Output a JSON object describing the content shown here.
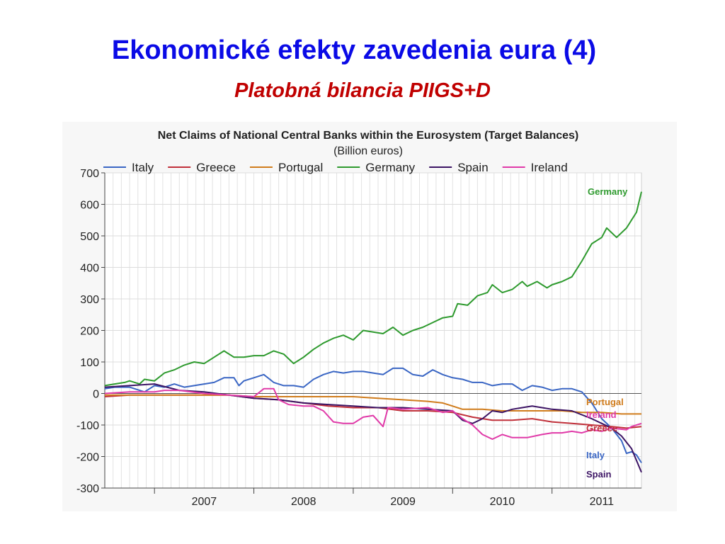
{
  "slide": {
    "title": "Ekonomické efekty zavedenia eura (4)",
    "subtitle": "Platobná bilancia PIIGS+D"
  },
  "chart_data": {
    "type": "line",
    "title": "Net Claims of National Central Banks within the Eurosystem (Target Balances)",
    "subtitle": "(Billion euros)",
    "xlabel": "",
    "ylabel": "",
    "ylim": [
      -300,
      700
    ],
    "yticks": [
      -300,
      -200,
      -100,
      0,
      100,
      200,
      300,
      400,
      500,
      600,
      700
    ],
    "xlim": [
      2006.5,
      2011.9
    ],
    "xtick_labels": [
      "2007",
      "2008",
      "2009",
      "2010",
      "2011"
    ],
    "grid": true,
    "legend_position": "top",
    "series": [
      {
        "name": "Italy",
        "color": "#3a66c4",
        "end_label": "Italy",
        "points": [
          [
            2006.5,
            15
          ],
          [
            2006.6,
            20
          ],
          [
            2006.75,
            20
          ],
          [
            2006.9,
            5
          ],
          [
            2007.0,
            25
          ],
          [
            2007.1,
            20
          ],
          [
            2007.2,
            30
          ],
          [
            2007.3,
            20
          ],
          [
            2007.4,
            25
          ],
          [
            2007.5,
            30
          ],
          [
            2007.6,
            35
          ],
          [
            2007.7,
            50
          ],
          [
            2007.8,
            50
          ],
          [
            2007.85,
            25
          ],
          [
            2007.9,
            40
          ],
          [
            2008.0,
            50
          ],
          [
            2008.1,
            60
          ],
          [
            2008.2,
            35
          ],
          [
            2008.3,
            25
          ],
          [
            2008.4,
            25
          ],
          [
            2008.5,
            20
          ],
          [
            2008.6,
            45
          ],
          [
            2008.7,
            60
          ],
          [
            2008.8,
            70
          ],
          [
            2008.9,
            65
          ],
          [
            2009.0,
            70
          ],
          [
            2009.1,
            70
          ],
          [
            2009.2,
            65
          ],
          [
            2009.3,
            60
          ],
          [
            2009.4,
            80
          ],
          [
            2009.5,
            80
          ],
          [
            2009.6,
            60
          ],
          [
            2009.7,
            55
          ],
          [
            2009.8,
            75
          ],
          [
            2009.9,
            60
          ],
          [
            2010.0,
            50
          ],
          [
            2010.1,
            45
          ],
          [
            2010.2,
            35
          ],
          [
            2010.3,
            35
          ],
          [
            2010.4,
            25
          ],
          [
            2010.5,
            30
          ],
          [
            2010.6,
            30
          ],
          [
            2010.7,
            10
          ],
          [
            2010.8,
            25
          ],
          [
            2010.9,
            20
          ],
          [
            2011.0,
            10
          ],
          [
            2011.1,
            15
          ],
          [
            2011.2,
            15
          ],
          [
            2011.3,
            5
          ],
          [
            2011.4,
            -30
          ],
          [
            2011.5,
            -80
          ],
          [
            2011.6,
            -110
          ],
          [
            2011.7,
            -150
          ],
          [
            2011.75,
            -190
          ],
          [
            2011.8,
            -185
          ],
          [
            2011.85,
            -195
          ],
          [
            2011.9,
            -220
          ]
        ]
      },
      {
        "name": "Greece",
        "color": "#c0303a",
        "end_label": "Greece",
        "points": [
          [
            2006.5,
            -10
          ],
          [
            2006.75,
            -5
          ],
          [
            2007.0,
            -5
          ],
          [
            2007.25,
            -5
          ],
          [
            2007.5,
            -5
          ],
          [
            2007.75,
            -5
          ],
          [
            2008.0,
            -15
          ],
          [
            2008.25,
            -20
          ],
          [
            2008.5,
            -30
          ],
          [
            2008.75,
            -40
          ],
          [
            2009.0,
            -45
          ],
          [
            2009.25,
            -45
          ],
          [
            2009.5,
            -55
          ],
          [
            2009.75,
            -55
          ],
          [
            2010.0,
            -60
          ],
          [
            2010.2,
            -75
          ],
          [
            2010.4,
            -85
          ],
          [
            2010.6,
            -85
          ],
          [
            2010.8,
            -80
          ],
          [
            2011.0,
            -90
          ],
          [
            2011.2,
            -95
          ],
          [
            2011.4,
            -100
          ],
          [
            2011.6,
            -105
          ],
          [
            2011.75,
            -110
          ],
          [
            2011.9,
            -105
          ]
        ]
      },
      {
        "name": "Portugal",
        "color": "#d07c1c",
        "end_label": "Portugal",
        "points": [
          [
            2006.5,
            -5
          ],
          [
            2006.75,
            -5
          ],
          [
            2007.0,
            -5
          ],
          [
            2007.25,
            -5
          ],
          [
            2007.5,
            -5
          ],
          [
            2007.75,
            -5
          ],
          [
            2008.0,
            -10
          ],
          [
            2008.25,
            -10
          ],
          [
            2008.5,
            -10
          ],
          [
            2008.75,
            -10
          ],
          [
            2009.0,
            -10
          ],
          [
            2009.25,
            -15
          ],
          [
            2009.5,
            -20
          ],
          [
            2009.75,
            -25
          ],
          [
            2009.9,
            -30
          ],
          [
            2010.0,
            -40
          ],
          [
            2010.1,
            -50
          ],
          [
            2010.3,
            -50
          ],
          [
            2010.5,
            -55
          ],
          [
            2010.7,
            -55
          ],
          [
            2010.9,
            -55
          ],
          [
            2011.1,
            -55
          ],
          [
            2011.3,
            -60
          ],
          [
            2011.5,
            -60
          ],
          [
            2011.7,
            -65
          ],
          [
            2011.9,
            -65
          ]
        ]
      },
      {
        "name": "Germany",
        "color": "#2e9a2e",
        "end_label": "Germany",
        "points": [
          [
            2006.5,
            25
          ],
          [
            2006.6,
            30
          ],
          [
            2006.7,
            35
          ],
          [
            2006.75,
            40
          ],
          [
            2006.85,
            30
          ],
          [
            2006.9,
            45
          ],
          [
            2007.0,
            40
          ],
          [
            2007.1,
            65
          ],
          [
            2007.2,
            75
          ],
          [
            2007.3,
            90
          ],
          [
            2007.4,
            100
          ],
          [
            2007.5,
            95
          ],
          [
            2007.6,
            115
          ],
          [
            2007.7,
            135
          ],
          [
            2007.8,
            115
          ],
          [
            2007.9,
            115
          ],
          [
            2008.0,
            120
          ],
          [
            2008.1,
            120
          ],
          [
            2008.2,
            135
          ],
          [
            2008.3,
            125
          ],
          [
            2008.4,
            95
          ],
          [
            2008.5,
            115
          ],
          [
            2008.6,
            140
          ],
          [
            2008.7,
            160
          ],
          [
            2008.8,
            175
          ],
          [
            2008.9,
            185
          ],
          [
            2009.0,
            170
          ],
          [
            2009.1,
            200
          ],
          [
            2009.2,
            195
          ],
          [
            2009.3,
            190
          ],
          [
            2009.4,
            210
          ],
          [
            2009.5,
            185
          ],
          [
            2009.6,
            200
          ],
          [
            2009.7,
            210
          ],
          [
            2009.8,
            225
          ],
          [
            2009.9,
            240
          ],
          [
            2010.0,
            245
          ],
          [
            2010.05,
            285
          ],
          [
            2010.15,
            280
          ],
          [
            2010.25,
            310
          ],
          [
            2010.35,
            320
          ],
          [
            2010.4,
            345
          ],
          [
            2010.5,
            320
          ],
          [
            2010.6,
            330
          ],
          [
            2010.7,
            355
          ],
          [
            2010.75,
            340
          ],
          [
            2010.85,
            355
          ],
          [
            2010.95,
            335
          ],
          [
            2011.0,
            345
          ],
          [
            2011.1,
            355
          ],
          [
            2011.2,
            370
          ],
          [
            2011.3,
            420
          ],
          [
            2011.4,
            475
          ],
          [
            2011.5,
            495
          ],
          [
            2011.55,
            525
          ],
          [
            2011.65,
            495
          ],
          [
            2011.75,
            525
          ],
          [
            2011.85,
            575
          ],
          [
            2011.9,
            640
          ]
        ]
      },
      {
        "name": "Spain",
        "color": "#3c1464",
        "end_label": "Spain",
        "points": [
          [
            2006.5,
            20
          ],
          [
            2006.75,
            25
          ],
          [
            2007.0,
            30
          ],
          [
            2007.25,
            10
          ],
          [
            2007.5,
            5
          ],
          [
            2007.75,
            -5
          ],
          [
            2008.0,
            -15
          ],
          [
            2008.25,
            -20
          ],
          [
            2008.5,
            -30
          ],
          [
            2008.75,
            -35
          ],
          [
            2009.0,
            -40
          ],
          [
            2009.25,
            -45
          ],
          [
            2009.5,
            -45
          ],
          [
            2009.75,
            -50
          ],
          [
            2010.0,
            -55
          ],
          [
            2010.1,
            -85
          ],
          [
            2010.2,
            -95
          ],
          [
            2010.3,
            -80
          ],
          [
            2010.4,
            -55
          ],
          [
            2010.5,
            -60
          ],
          [
            2010.6,
            -50
          ],
          [
            2010.7,
            -45
          ],
          [
            2010.8,
            -40
          ],
          [
            2010.9,
            -45
          ],
          [
            2011.0,
            -50
          ],
          [
            2011.2,
            -55
          ],
          [
            2011.4,
            -80
          ],
          [
            2011.5,
            -95
          ],
          [
            2011.6,
            -110
          ],
          [
            2011.7,
            -135
          ],
          [
            2011.8,
            -175
          ],
          [
            2011.9,
            -250
          ]
        ]
      },
      {
        "name": "Ireland",
        "color": "#e03aa8",
        "end_label": "Ireland",
        "points": [
          [
            2006.5,
            0
          ],
          [
            2006.75,
            5
          ],
          [
            2007.0,
            5
          ],
          [
            2007.1,
            10
          ],
          [
            2007.25,
            10
          ],
          [
            2007.5,
            0
          ],
          [
            2007.75,
            -5
          ],
          [
            2008.0,
            -10
          ],
          [
            2008.1,
            15
          ],
          [
            2008.2,
            15
          ],
          [
            2008.25,
            -20
          ],
          [
            2008.35,
            -35
          ],
          [
            2008.5,
            -40
          ],
          [
            2008.6,
            -40
          ],
          [
            2008.7,
            -55
          ],
          [
            2008.8,
            -90
          ],
          [
            2008.9,
            -95
          ],
          [
            2009.0,
            -95
          ],
          [
            2009.1,
            -75
          ],
          [
            2009.2,
            -70
          ],
          [
            2009.3,
            -105
          ],
          [
            2009.35,
            -45
          ],
          [
            2009.5,
            -50
          ],
          [
            2009.75,
            -45
          ],
          [
            2009.9,
            -60
          ],
          [
            2010.0,
            -55
          ],
          [
            2010.1,
            -80
          ],
          [
            2010.2,
            -100
          ],
          [
            2010.3,
            -130
          ],
          [
            2010.4,
            -145
          ],
          [
            2010.5,
            -130
          ],
          [
            2010.6,
            -140
          ],
          [
            2010.75,
            -140
          ],
          [
            2010.9,
            -130
          ],
          [
            2011.0,
            -125
          ],
          [
            2011.1,
            -125
          ],
          [
            2011.2,
            -120
          ],
          [
            2011.3,
            -125
          ],
          [
            2011.4,
            -115
          ],
          [
            2011.5,
            -120
          ],
          [
            2011.6,
            -110
          ],
          [
            2011.75,
            -115
          ],
          [
            2011.8,
            -105
          ],
          [
            2011.9,
            -95
          ]
        ]
      }
    ]
  }
}
